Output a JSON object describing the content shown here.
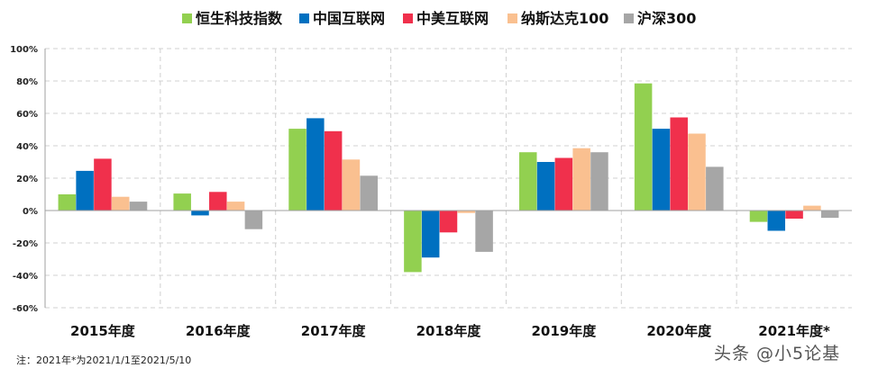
{
  "chart_data": {
    "type": "bar",
    "title": "",
    "xlabel": "",
    "ylabel": "",
    "categories": [
      "2015年度",
      "2016年度",
      "2017年度",
      "2018年度",
      "2019年度",
      "2020年度",
      "2021年度*"
    ],
    "ylim": [
      -60,
      100
    ],
    "yticks": [
      -60,
      -40,
      -20,
      0,
      20,
      40,
      60,
      80,
      100
    ],
    "ytick_labels": [
      "-60%",
      "-40%",
      "-20%",
      "0%",
      "20%",
      "40%",
      "60%",
      "80%",
      "100%"
    ],
    "grid": true,
    "legend_position": "top",
    "series": [
      {
        "name": "恒生科技指数",
        "color": "#92d050",
        "values": [
          10,
          10.5,
          50.5,
          -38,
          36,
          78.5,
          -7
        ]
      },
      {
        "name": "中国互联网",
        "color": "#0070c0",
        "values": [
          24.5,
          -3,
          57,
          -29,
          30,
          50.5,
          -12.5
        ]
      },
      {
        "name": "中美互联网",
        "color": "#f0304c",
        "values": [
          32,
          11.5,
          49,
          -13.5,
          32.5,
          57.5,
          -5
        ]
      },
      {
        "name": "纳斯达克100",
        "color": "#fac090",
        "values": [
          8.5,
          5.5,
          31.5,
          -1.5,
          38.5,
          47.5,
          3
        ]
      },
      {
        "name": "沪深300",
        "color": "#a6a6a6",
        "values": [
          5.5,
          -11.5,
          21.5,
          -25.5,
          36,
          27,
          -4.5
        ]
      }
    ]
  },
  "footnote": "注：2021年*为2021/1/1至2021/5/10",
  "watermark": "头条 @小5论基"
}
